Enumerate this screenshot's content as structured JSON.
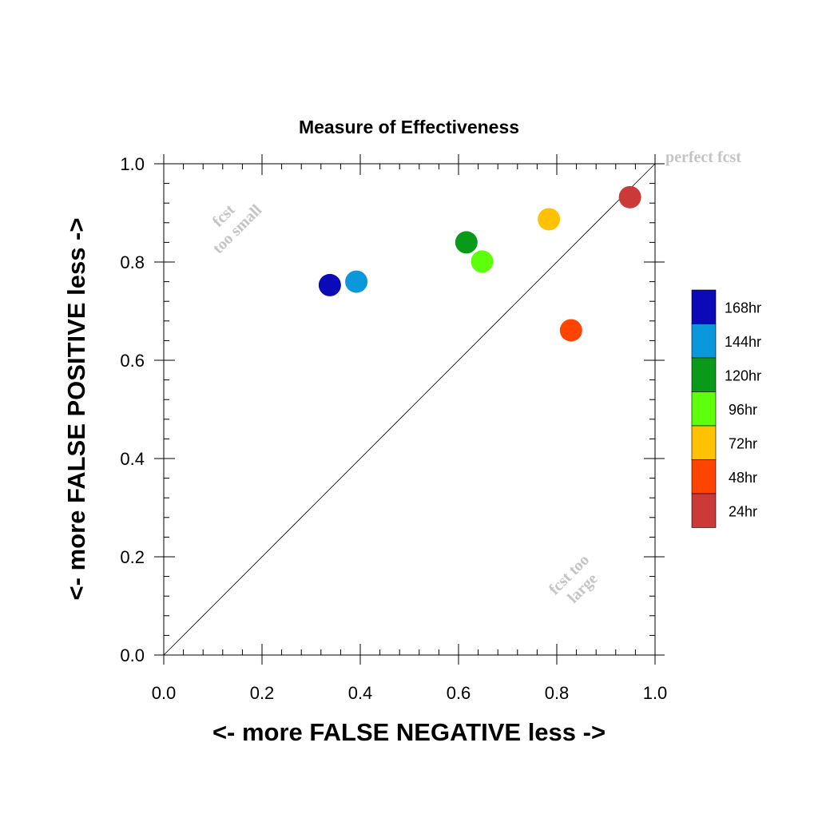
{
  "chart_data": {
    "type": "scatter",
    "title": "Measure of Effectiveness",
    "xlabel": "<- more   FALSE NEGATIVE   less ->",
    "ylabel": "<- more   FALSE POSITIVE   less ->",
    "xlim": [
      0.0,
      1.0
    ],
    "ylim": [
      0.0,
      1.0
    ],
    "x_ticks": [
      "0.0",
      "0.2",
      "0.4",
      "0.6",
      "0.8",
      "1.0"
    ],
    "y_ticks": [
      "0.0",
      "0.2",
      "0.4",
      "0.6",
      "0.8",
      "1.0"
    ],
    "grid": false,
    "reference_line": "diagonal",
    "annotations": {
      "perfect": "perfect fcst",
      "too_small_1": "fcst",
      "too_small_2": "too small",
      "too_large_1": "fcst too",
      "too_large_2": "large"
    },
    "legend_position": "right",
    "series": [
      {
        "name": "168hr",
        "color": "#0a0ab6",
        "x": 0.338,
        "y": 0.753
      },
      {
        "name": "144hr",
        "color": "#0b97dc",
        "x": 0.392,
        "y": 0.76
      },
      {
        "name": "120hr",
        "color": "#0a9a19",
        "x": 0.616,
        "y": 0.84
      },
      {
        "name": "96hr",
        "color": "#5dff0b",
        "x": 0.648,
        "y": 0.801
      },
      {
        "name": "72hr",
        "color": "#ffc203",
        "x": 0.784,
        "y": 0.887
      },
      {
        "name": "48hr",
        "color": "#ff4300",
        "x": 0.829,
        "y": 0.661
      },
      {
        "name": "24hr",
        "color": "#cc3939",
        "x": 0.949,
        "y": 0.932
      }
    ]
  }
}
